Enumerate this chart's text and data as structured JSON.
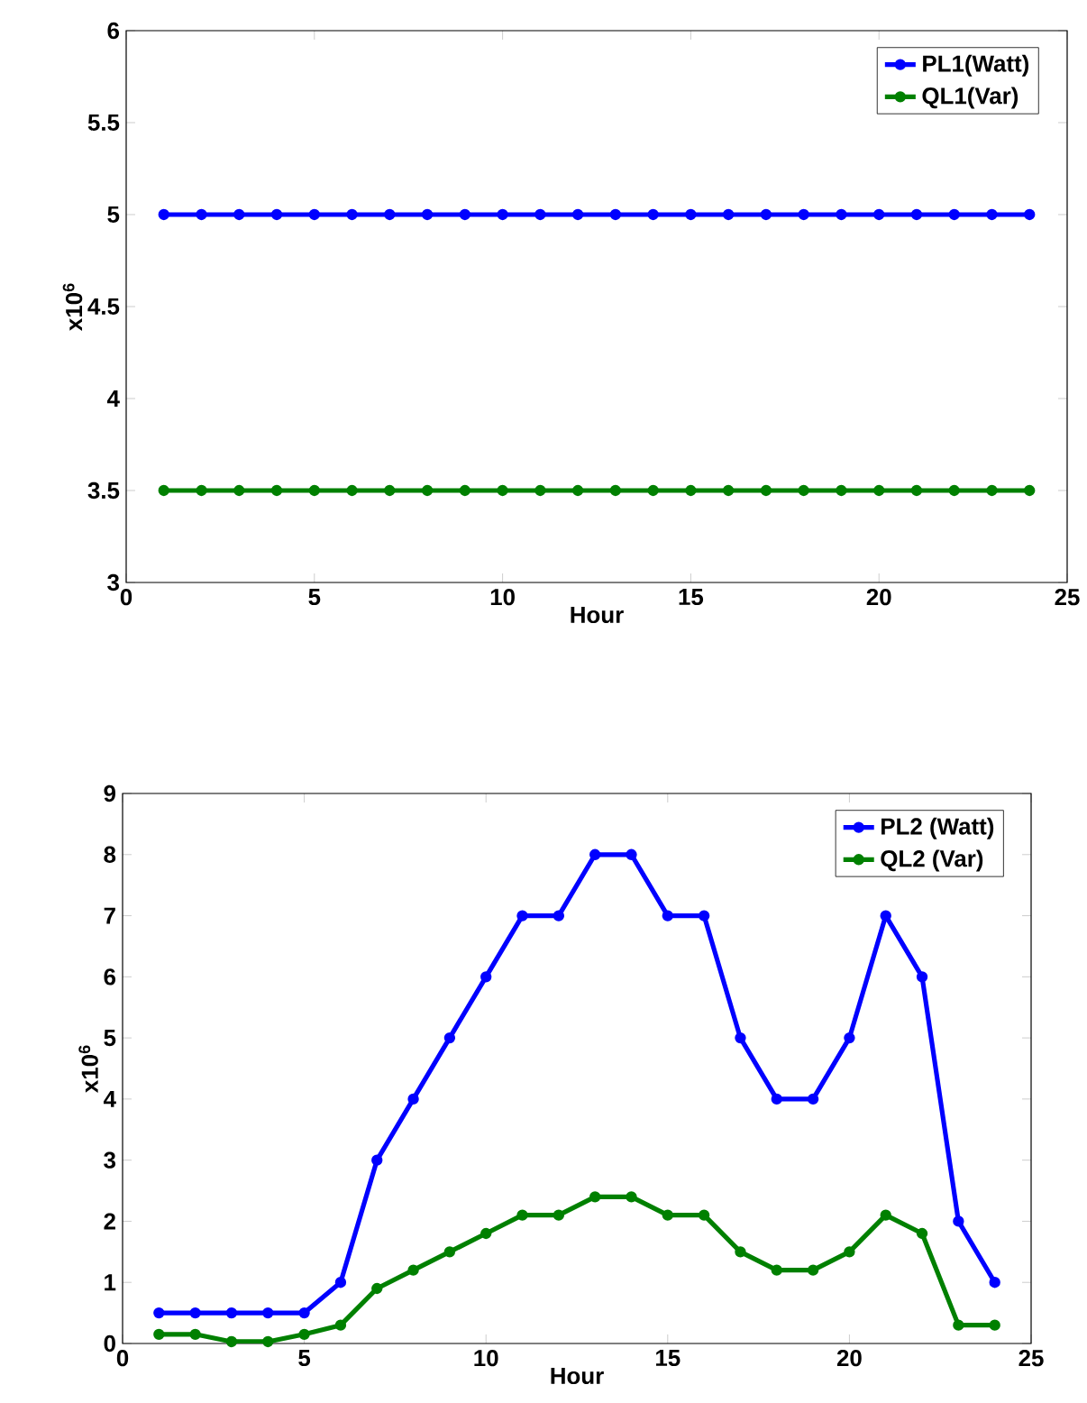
{
  "chart_data": [
    {
      "type": "line",
      "xlabel": "Hour",
      "ylabel": "x10$^{6}$",
      "x": [
        1,
        2,
        3,
        4,
        5,
        6,
        7,
        8,
        9,
        10,
        11,
        12,
        13,
        14,
        15,
        16,
        17,
        18,
        19,
        20,
        21,
        22,
        23,
        24
      ],
      "series": [
        {
          "name": "PL1(Watt)",
          "color": "#0000ff",
          "values": [
            5,
            5,
            5,
            5,
            5,
            5,
            5,
            5,
            5,
            5,
            5,
            5,
            5,
            5,
            5,
            5,
            5,
            5,
            5,
            5,
            5,
            5,
            5,
            5
          ]
        },
        {
          "name": "QL1(Var)",
          "color": "#008000",
          "values": [
            3.5,
            3.5,
            3.5,
            3.5,
            3.5,
            3.5,
            3.5,
            3.5,
            3.5,
            3.5,
            3.5,
            3.5,
            3.5,
            3.5,
            3.5,
            3.5,
            3.5,
            3.5,
            3.5,
            3.5,
            3.5,
            3.5,
            3.5,
            3.5
          ]
        }
      ],
      "xlim": [
        0,
        25
      ],
      "xticks": [
        0,
        5,
        10,
        15,
        20,
        25
      ],
      "ylim": [
        3,
        6
      ],
      "yticks": [
        3,
        3.5,
        4,
        4.5,
        5,
        5.5,
        6
      ],
      "legend": "top right",
      "marker": "circle",
      "line_style": "solid",
      "grid": false
    },
    {
      "type": "line",
      "xlabel": "Hour",
      "ylabel": "x10$^{6}$",
      "x": [
        1,
        2,
        3,
        4,
        5,
        6,
        7,
        8,
        9,
        10,
        11,
        12,
        13,
        14,
        15,
        16,
        17,
        18,
        19,
        20,
        21,
        22,
        23,
        24
      ],
      "series": [
        {
          "name": "PL2 (Watt)",
          "color": "#0000ff",
          "values": [
            0.5,
            0.5,
            0.5,
            0.5,
            0.5,
            1,
            3,
            4,
            5,
            6,
            7,
            7,
            8,
            8,
            7,
            7,
            5,
            4,
            4,
            5,
            7,
            6,
            2,
            1
          ]
        },
        {
          "name": "QL2 (Var)",
          "color": "#008000",
          "values": [
            0.15,
            0.15,
            0.03,
            0.03,
            0.15,
            0.3,
            0.9,
            1.2,
            1.5,
            1.8,
            2.1,
            2.1,
            2.4,
            2.4,
            2.1,
            2.1,
            1.5,
            1.2,
            1.2,
            1.5,
            2.1,
            1.8,
            0.3,
            0.3
          ]
        }
      ],
      "xlim": [
        0,
        25
      ],
      "xticks": [
        0,
        5,
        10,
        15,
        20,
        25
      ],
      "ylim": [
        0,
        9
      ],
      "yticks": [
        0,
        1,
        2,
        3,
        4,
        5,
        6,
        7,
        8,
        9
      ],
      "legend": "top right",
      "marker": "circle",
      "line_style": "solid",
      "grid": false
    }
  ]
}
